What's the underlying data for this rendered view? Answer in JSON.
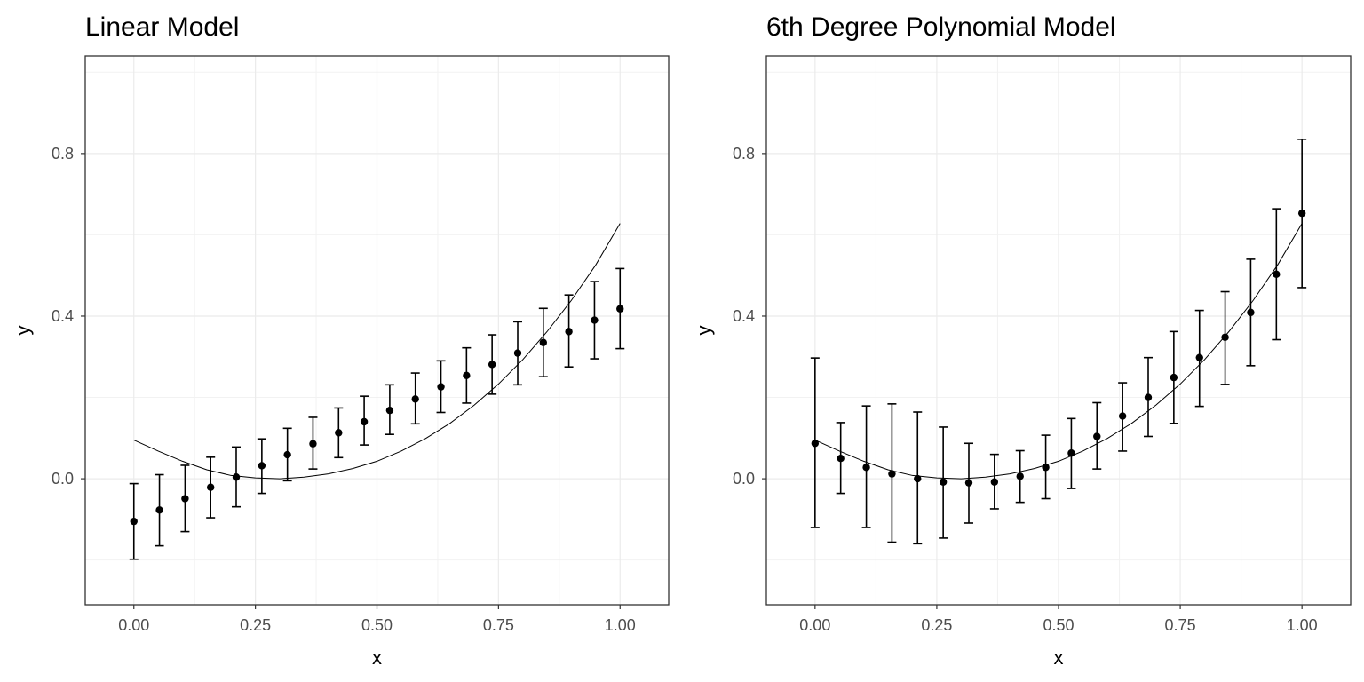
{
  "chart_data": [
    {
      "type": "scatter",
      "title": "Linear Model",
      "xlabel": "x",
      "ylabel": "y",
      "xlim": [
        -0.1,
        1.1
      ],
      "ylim": [
        -0.31,
        1.04
      ],
      "grid": true,
      "x_ticks": [
        0.0,
        0.25,
        0.5,
        0.75,
        1.0
      ],
      "x_tick_labels": [
        "0.00",
        "0.25",
        "0.50",
        "0.75",
        "1.00"
      ],
      "y_ticks": [
        0.0,
        0.4,
        0.8
      ],
      "y_tick_labels": [
        "0.0",
        "0.4",
        "0.8"
      ],
      "series": [
        {
          "kind": "points_with_error_bars",
          "x": [
            0,
            0.0526,
            0.1053,
            0.1579,
            0.2105,
            0.2632,
            0.3158,
            0.3684,
            0.4211,
            0.4737,
            0.5263,
            0.5789,
            0.6316,
            0.6842,
            0.7368,
            0.7895,
            0.8421,
            0.8947,
            0.9474,
            1.0
          ],
          "y": [
            -0.105,
            -0.077,
            -0.049,
            -0.021,
            0.004,
            0.032,
            0.059,
            0.086,
            0.113,
            0.14,
            0.168,
            0.196,
            0.226,
            0.254,
            0.281,
            0.309,
            0.335,
            0.362,
            0.39,
            0.418
          ],
          "ymin": [
            -0.198,
            -0.165,
            -0.13,
            -0.096,
            -0.069,
            -0.036,
            -0.005,
            0.024,
            0.052,
            0.083,
            0.109,
            0.135,
            0.163,
            0.186,
            0.208,
            0.231,
            0.251,
            0.275,
            0.295,
            0.32
          ],
          "ymax": [
            -0.012,
            0.01,
            0.033,
            0.053,
            0.078,
            0.098,
            0.124,
            0.151,
            0.174,
            0.203,
            0.231,
            0.26,
            0.29,
            0.322,
            0.354,
            0.386,
            0.419,
            0.452,
            0.485,
            0.517
          ]
        },
        {
          "kind": "line",
          "x": [
            0,
            0.05,
            0.1,
            0.15,
            0.2,
            0.25,
            0.3,
            0.35,
            0.4,
            0.45,
            0.5,
            0.55,
            0.6,
            0.65,
            0.7,
            0.75,
            0.8,
            0.85,
            0.9,
            0.95,
            1.0
          ],
          "y": [
            0.095,
            0.068,
            0.043,
            0.022,
            0.008,
            0.002,
            0.0,
            0.004,
            0.012,
            0.025,
            0.043,
            0.068,
            0.099,
            0.136,
            0.181,
            0.233,
            0.293,
            0.362,
            0.439,
            0.526,
            0.628
          ]
        }
      ]
    },
    {
      "type": "scatter",
      "title": "6th Degree Polynomial Model",
      "xlabel": "x",
      "ylabel": "y",
      "xlim": [
        -0.1,
        1.1
      ],
      "ylim": [
        -0.31,
        1.04
      ],
      "grid": true,
      "x_ticks": [
        0.0,
        0.25,
        0.5,
        0.75,
        1.0
      ],
      "x_tick_labels": [
        "0.00",
        "0.25",
        "0.50",
        "0.75",
        "1.00"
      ],
      "y_ticks": [
        0.0,
        0.4,
        0.8
      ],
      "y_tick_labels": [
        "0.0",
        "0.4",
        "0.8"
      ],
      "series": [
        {
          "kind": "points_with_error_bars",
          "x": [
            0,
            0.0526,
            0.1053,
            0.1579,
            0.2105,
            0.2632,
            0.3158,
            0.3684,
            0.4211,
            0.4737,
            0.5263,
            0.5789,
            0.6316,
            0.6842,
            0.7368,
            0.7895,
            0.8421,
            0.8947,
            0.9474,
            1.0
          ],
          "y": [
            0.087,
            0.05,
            0.028,
            0.012,
            0.0,
            -0.008,
            -0.01,
            -0.008,
            0.006,
            0.028,
            0.063,
            0.104,
            0.154,
            0.2,
            0.249,
            0.298,
            0.348,
            0.409,
            0.503,
            0.653
          ],
          "ymin": [
            -0.12,
            -0.036,
            -0.12,
            -0.156,
            -0.16,
            -0.146,
            -0.109,
            -0.074,
            -0.058,
            -0.049,
            -0.024,
            0.024,
            0.068,
            0.104,
            0.136,
            0.178,
            0.232,
            0.278,
            0.342,
            0.47
          ],
          "ymax": [
            0.297,
            0.138,
            0.179,
            0.184,
            0.164,
            0.127,
            0.087,
            0.06,
            0.069,
            0.107,
            0.148,
            0.187,
            0.236,
            0.298,
            0.362,
            0.414,
            0.46,
            0.54,
            0.664,
            0.835
          ]
        },
        {
          "kind": "line",
          "x": [
            0,
            0.05,
            0.1,
            0.15,
            0.2,
            0.25,
            0.3,
            0.35,
            0.4,
            0.45,
            0.5,
            0.55,
            0.6,
            0.65,
            0.7,
            0.75,
            0.8,
            0.85,
            0.9,
            0.95,
            1.0
          ],
          "y": [
            0.095,
            0.068,
            0.043,
            0.022,
            0.008,
            0.002,
            0.0,
            0.004,
            0.012,
            0.025,
            0.043,
            0.068,
            0.099,
            0.136,
            0.181,
            0.233,
            0.293,
            0.362,
            0.439,
            0.526,
            0.628
          ]
        }
      ]
    }
  ]
}
